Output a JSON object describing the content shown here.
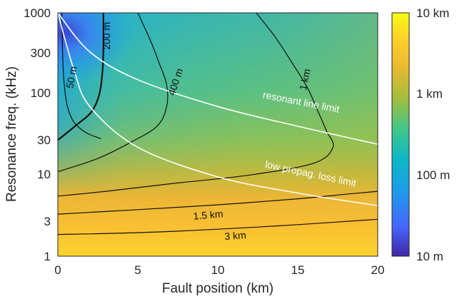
{
  "chart_data": {
    "type": "heatmap",
    "xlabel": "Fault position (km)",
    "ylabel": "Resonance freq. (kHz)",
    "x_ticks": [
      "0",
      "5",
      "10",
      "15",
      "20"
    ],
    "y_ticks": [
      "1",
      "3",
      "10",
      "30",
      "100",
      "300",
      "1000"
    ],
    "xlim": [
      0,
      20
    ],
    "ylim": [
      1,
      1000
    ],
    "y_scale": "log",
    "grid": false,
    "colorbar": {
      "scale": "log",
      "range": [
        "10 m",
        "10 km"
      ],
      "tick_labels": [
        "10 km",
        "1 km",
        "100 m",
        "10 m"
      ],
      "colormap": "parula",
      "colors": [
        "#3e26a8",
        "#4665f9",
        "#1d9cea",
        "#0cb8c7",
        "#3fc68b",
        "#a4bd3d",
        "#ecb92f",
        "#fccd2c",
        "#f9fb14"
      ]
    },
    "contours": [
      {
        "label": "50 m",
        "points": [
          [
            0.25,
            1000
          ],
          [
            0.3,
            300
          ],
          [
            0.4,
            130
          ],
          [
            0.6,
            70
          ],
          [
            1.0,
            45
          ],
          [
            1.6,
            35
          ],
          [
            2.1,
            31
          ],
          [
            2.5,
            29
          ],
          [
            2.7,
            28
          ]
        ]
      },
      {
        "label": "200 m",
        "points": [
          [
            2.85,
            1000
          ],
          [
            2.85,
            400
          ],
          [
            2.8,
            200
          ],
          [
            2.6,
            100
          ],
          [
            2.1,
            60
          ],
          [
            1.2,
            42
          ],
          [
            0,
            27
          ]
        ]
      },
      {
        "label": "400 m",
        "points": [
          [
            5.0,
            1000
          ],
          [
            5.8,
            450
          ],
          [
            6.3,
            250
          ],
          [
            6.8,
            130
          ],
          [
            6.8,
            70
          ],
          [
            6.2,
            40
          ],
          [
            4.5,
            25
          ],
          [
            2.5,
            16
          ],
          [
            0,
            11
          ]
        ]
      },
      {
        "label": "1 km",
        "points": [
          [
            12.4,
            1000
          ],
          [
            13.6,
            500
          ],
          [
            14.6,
            250
          ],
          [
            15.6,
            120
          ],
          [
            16.2,
            65
          ],
          [
            16.8,
            35
          ],
          [
            17.2,
            22
          ],
          [
            16.0,
            14
          ],
          [
            12.0,
            10
          ],
          [
            7.0,
            7.8
          ],
          [
            3.0,
            6.3
          ],
          [
            0,
            5.5
          ]
        ]
      },
      {
        "label": "1.5 km",
        "points": [
          [
            0,
            3.3
          ],
          [
            5.0,
            3.75
          ],
          [
            10.0,
            4.3
          ],
          [
            15.0,
            5.1
          ],
          [
            18.0,
            5.8
          ],
          [
            20,
            6.3
          ]
        ]
      },
      {
        "label": "3 km",
        "points": [
          [
            0,
            1.85
          ],
          [
            5.0,
            1.95
          ],
          [
            10.0,
            2.15
          ],
          [
            15.0,
            2.45
          ],
          [
            20,
            2.85
          ]
        ]
      }
    ],
    "limit_curves": [
      {
        "label": "resonant line limit",
        "points": [
          [
            0,
            1000
          ],
          [
            2.0,
            330
          ],
          [
            5.0,
            150
          ],
          [
            10.0,
            70
          ],
          [
            15.0,
            40
          ],
          [
            20,
            24
          ]
        ]
      },
      {
        "label": "low propag. loss limit",
        "points": [
          [
            0,
            1000
          ],
          [
            1.0,
            200
          ],
          [
            2.0,
            70
          ],
          [
            5.0,
            22
          ],
          [
            10.0,
            9.5
          ],
          [
            15.0,
            6.0
          ],
          [
            20,
            4.2
          ]
        ]
      }
    ]
  }
}
